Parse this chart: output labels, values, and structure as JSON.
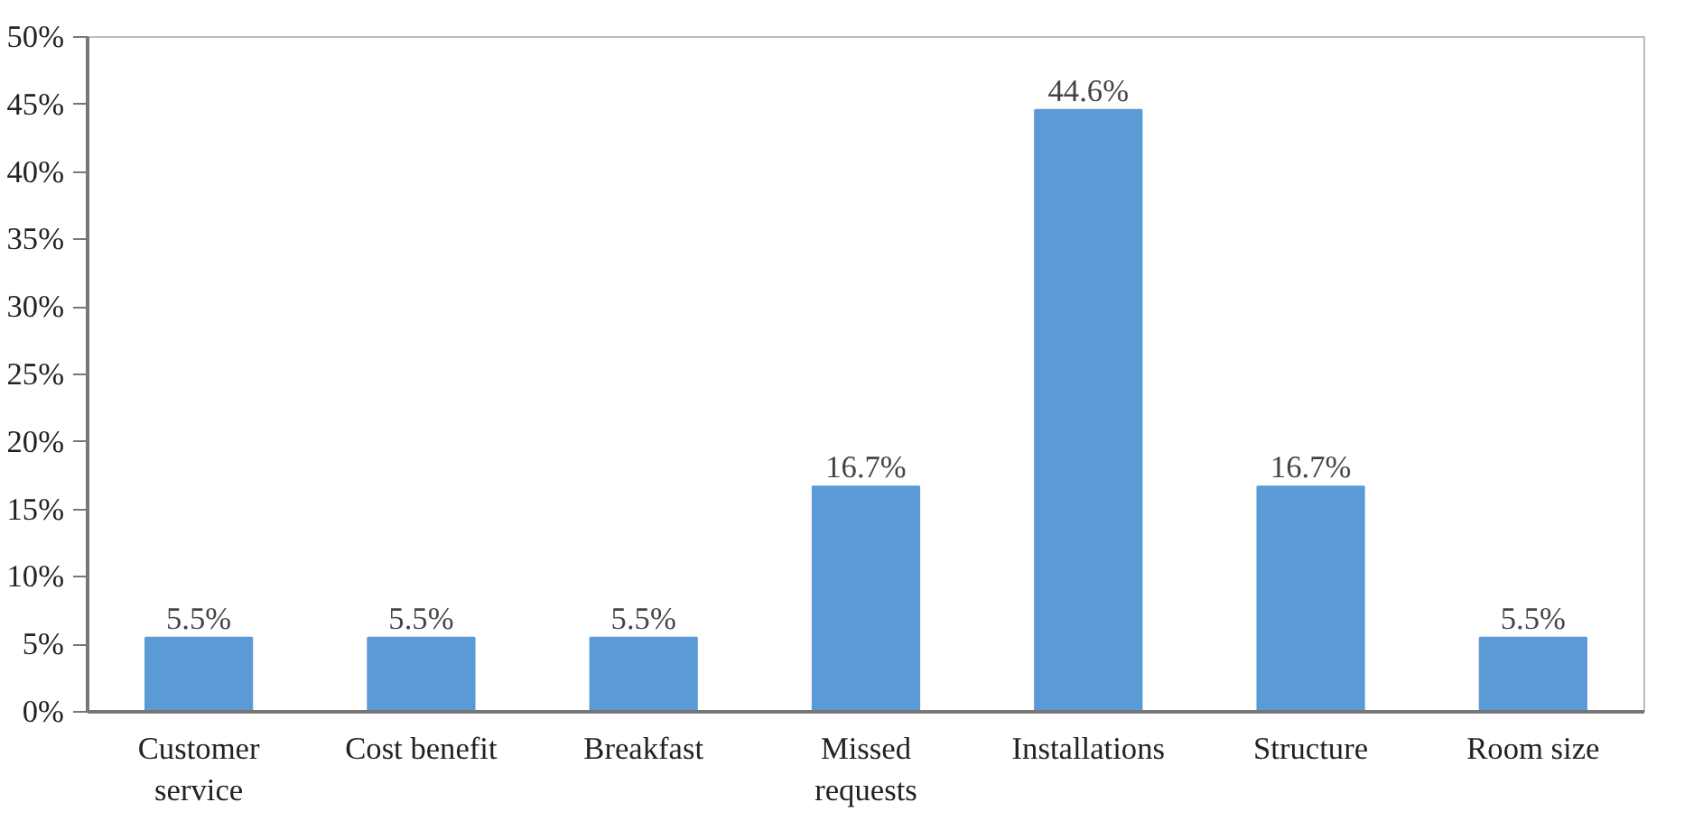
{
  "chart_data": {
    "type": "bar",
    "categories": [
      "Customer\nservice",
      "Cost benefit",
      "Breakfast",
      "Missed\nrequests",
      "Installations",
      "Structure",
      "Room size"
    ],
    "values": [
      5.5,
      5.5,
      5.5,
      16.7,
      44.6,
      16.7,
      5.5
    ],
    "value_labels": [
      "5.5%",
      "5.5%",
      "5.5%",
      "16.7%",
      "44.6%",
      "16.7%",
      "5.5%"
    ],
    "color": "#5b9bd5",
    "ylim": [
      0,
      50
    ],
    "yticks": [
      {
        "value": 0,
        "label": "0%"
      },
      {
        "value": 5,
        "label": "5%"
      },
      {
        "value": 10,
        "label": "10%"
      },
      {
        "value": 15,
        "label": "15%"
      },
      {
        "value": 20,
        "label": "20%"
      },
      {
        "value": 25,
        "label": "25%"
      },
      {
        "value": 30,
        "label": "30%"
      },
      {
        "value": 35,
        "label": "35%"
      },
      {
        "value": 40,
        "label": "40%"
      },
      {
        "value": 45,
        "label": "45%"
      },
      {
        "value": 50,
        "label": "50%"
      }
    ],
    "grid": false
  }
}
